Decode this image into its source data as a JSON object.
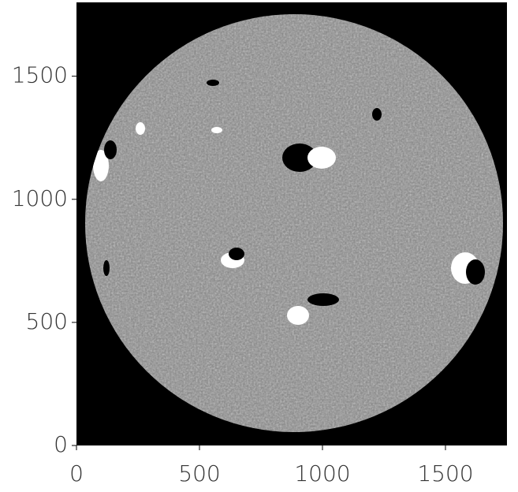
{
  "chart_data": {
    "type": "image",
    "xlim": [
      0,
      1750
    ],
    "ylim": [
      0,
      1800
    ],
    "xticks": [
      0,
      500,
      1000,
      1500
    ],
    "yticks": [
      0,
      500,
      1000,
      1500
    ],
    "grid": false
  }
}
